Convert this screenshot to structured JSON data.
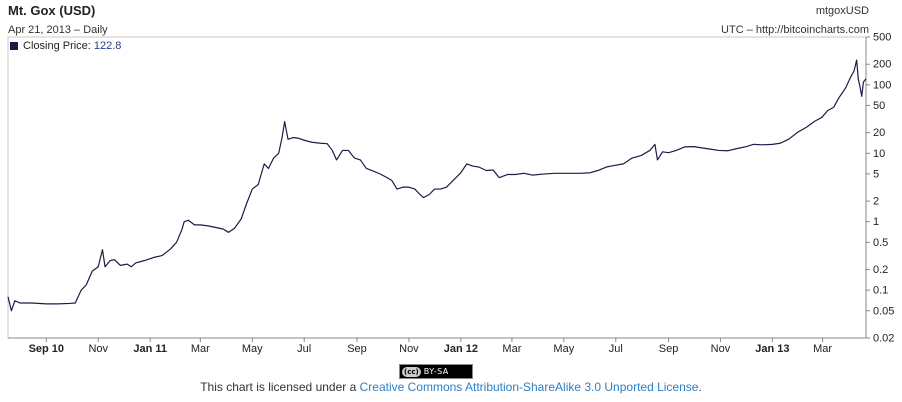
{
  "header": {
    "title": "Mt. Gox (USD)",
    "subtitle": "Apr 21, 2013 – Daily",
    "symbol": "mtgoxUSD",
    "source": "UTC – http://bitcoincharts.com"
  },
  "legend": {
    "label": "Closing Price:",
    "value": "122.8",
    "color": "#1c1c47"
  },
  "license": {
    "badge_cc": "(cc)",
    "badge_text": "BY-SA",
    "text": "This chart is licensed under a ",
    "link": "Creative Commons Attribution-ShareAlike 3.0 Unported License",
    "tail": "."
  },
  "chart_data": {
    "type": "line",
    "yscale": "log",
    "ylim": [
      0.02,
      500
    ],
    "xlim": [
      "2010-07-18",
      "2013-04-21"
    ],
    "grid": false,
    "y_ticks": [
      {
        "value": 500,
        "label": "500"
      },
      {
        "value": 200,
        "label": "200"
      },
      {
        "value": 100,
        "label": "100"
      },
      {
        "value": 50,
        "label": "50"
      },
      {
        "value": 20,
        "label": "20"
      },
      {
        "value": 10,
        "label": "10"
      },
      {
        "value": 5,
        "label": "5"
      },
      {
        "value": 2,
        "label": "2"
      },
      {
        "value": 1,
        "label": "1"
      },
      {
        "value": 0.5,
        "label": "0.5"
      },
      {
        "value": 0.2,
        "label": "0.2"
      },
      {
        "value": 0.1,
        "label": "0.1"
      },
      {
        "value": 0.05,
        "label": "0.05"
      },
      {
        "value": 0.02,
        "label": "0.02"
      }
    ],
    "x_ticks": [
      {
        "date": "2010-09-01",
        "label": "Sep 10",
        "bold": true
      },
      {
        "date": "2010-11-01",
        "label": "Nov",
        "bold": false
      },
      {
        "date": "2011-01-01",
        "label": "Jan 11",
        "bold": true
      },
      {
        "date": "2011-03-01",
        "label": "Mar",
        "bold": false
      },
      {
        "date": "2011-05-01",
        "label": "May",
        "bold": false
      },
      {
        "date": "2011-07-01",
        "label": "Jul",
        "bold": false
      },
      {
        "date": "2011-09-01",
        "label": "Sep",
        "bold": false
      },
      {
        "date": "2011-11-01",
        "label": "Nov",
        "bold": false
      },
      {
        "date": "2012-01-01",
        "label": "Jan 12",
        "bold": true
      },
      {
        "date": "2012-03-01",
        "label": "Mar",
        "bold": false
      },
      {
        "date": "2012-05-01",
        "label": "May",
        "bold": false
      },
      {
        "date": "2012-07-01",
        "label": "Jul",
        "bold": false
      },
      {
        "date": "2012-09-01",
        "label": "Sep",
        "bold": false
      },
      {
        "date": "2012-11-01",
        "label": "Nov",
        "bold": false
      },
      {
        "date": "2013-01-01",
        "label": "Jan 13",
        "bold": true
      },
      {
        "date": "2013-03-01",
        "label": "Mar",
        "bold": false
      }
    ],
    "series": [
      {
        "name": "Closing Price",
        "color": "#1c1c47",
        "points": [
          [
            "2010-07-18",
            0.08
          ],
          [
            "2010-07-22",
            0.05
          ],
          [
            "2010-07-26",
            0.07
          ],
          [
            "2010-08-01",
            0.065
          ],
          [
            "2010-08-15",
            0.065
          ],
          [
            "2010-09-01",
            0.063
          ],
          [
            "2010-09-15",
            0.063
          ],
          [
            "2010-09-28",
            0.064
          ],
          [
            "2010-10-05",
            0.065
          ],
          [
            "2010-10-12",
            0.1
          ],
          [
            "2010-10-18",
            0.12
          ],
          [
            "2010-10-25",
            0.19
          ],
          [
            "2010-11-01",
            0.22
          ],
          [
            "2010-11-06",
            0.39
          ],
          [
            "2010-11-09",
            0.22
          ],
          [
            "2010-11-15",
            0.27
          ],
          [
            "2010-11-20",
            0.28
          ],
          [
            "2010-11-27",
            0.23
          ],
          [
            "2010-12-05",
            0.24
          ],
          [
            "2010-12-10",
            0.22
          ],
          [
            "2010-12-15",
            0.25
          ],
          [
            "2010-12-25",
            0.27
          ],
          [
            "2011-01-05",
            0.3
          ],
          [
            "2011-01-15",
            0.32
          ],
          [
            "2011-01-25",
            0.4
          ],
          [
            "2011-02-01",
            0.5
          ],
          [
            "2011-02-07",
            0.75
          ],
          [
            "2011-02-10",
            1.0
          ],
          [
            "2011-02-15",
            1.05
          ],
          [
            "2011-02-22",
            0.9
          ],
          [
            "2011-03-01",
            0.9
          ],
          [
            "2011-03-10",
            0.87
          ],
          [
            "2011-03-20",
            0.82
          ],
          [
            "2011-03-28",
            0.78
          ],
          [
            "2011-04-03",
            0.7
          ],
          [
            "2011-04-10",
            0.8
          ],
          [
            "2011-04-18",
            1.1
          ],
          [
            "2011-04-24",
            1.8
          ],
          [
            "2011-05-01",
            3.0
          ],
          [
            "2011-05-08",
            3.5
          ],
          [
            "2011-05-15",
            7.0
          ],
          [
            "2011-05-20",
            6.0
          ],
          [
            "2011-05-26",
            8.5
          ],
          [
            "2011-06-01",
            10.0
          ],
          [
            "2011-06-05",
            17.0
          ],
          [
            "2011-06-08",
            29.0
          ],
          [
            "2011-06-12",
            16.0
          ],
          [
            "2011-06-18",
            17.0
          ],
          [
            "2011-06-25",
            16.5
          ],
          [
            "2011-07-01",
            15.5
          ],
          [
            "2011-07-10",
            14.5
          ],
          [
            "2011-07-20",
            14.0
          ],
          [
            "2011-07-28",
            13.8
          ],
          [
            "2011-08-03",
            11.0
          ],
          [
            "2011-08-08",
            8.0
          ],
          [
            "2011-08-15",
            11.0
          ],
          [
            "2011-08-22",
            11.0
          ],
          [
            "2011-08-29",
            8.5
          ],
          [
            "2011-09-05",
            8.0
          ],
          [
            "2011-09-12",
            6.0
          ],
          [
            "2011-09-20",
            5.5
          ],
          [
            "2011-09-28",
            5.0
          ],
          [
            "2011-10-05",
            4.5
          ],
          [
            "2011-10-12",
            4.0
          ],
          [
            "2011-10-18",
            3.0
          ],
          [
            "2011-10-25",
            3.2
          ],
          [
            "2011-11-01",
            3.2
          ],
          [
            "2011-11-08",
            3.0
          ],
          [
            "2011-11-14",
            2.5
          ],
          [
            "2011-11-18",
            2.25
          ],
          [
            "2011-11-25",
            2.5
          ],
          [
            "2011-12-01",
            3.0
          ],
          [
            "2011-12-08",
            3.0
          ],
          [
            "2011-12-15",
            3.2
          ],
          [
            "2011-12-22",
            3.9
          ],
          [
            "2012-01-01",
            5.2
          ],
          [
            "2012-01-08",
            7.0
          ],
          [
            "2012-01-15",
            6.5
          ],
          [
            "2012-01-22",
            6.3
          ],
          [
            "2012-01-31",
            5.6
          ],
          [
            "2012-02-08",
            5.7
          ],
          [
            "2012-02-15",
            4.4
          ],
          [
            "2012-02-25",
            4.9
          ],
          [
            "2012-03-05",
            4.9
          ],
          [
            "2012-03-15",
            5.1
          ],
          [
            "2012-03-25",
            4.8
          ],
          [
            "2012-04-05",
            4.95
          ],
          [
            "2012-04-20",
            5.1
          ],
          [
            "2012-05-05",
            5.1
          ],
          [
            "2012-05-20",
            5.1
          ],
          [
            "2012-06-01",
            5.2
          ],
          [
            "2012-06-10",
            5.6
          ],
          [
            "2012-06-20",
            6.3
          ],
          [
            "2012-07-01",
            6.7
          ],
          [
            "2012-07-10",
            7.0
          ],
          [
            "2012-07-20",
            8.5
          ],
          [
            "2012-07-31",
            9.3
          ],
          [
            "2012-08-10",
            11.0
          ],
          [
            "2012-08-16",
            13.5
          ],
          [
            "2012-08-19",
            8.0
          ],
          [
            "2012-08-25",
            10.5
          ],
          [
            "2012-09-01",
            10.2
          ],
          [
            "2012-09-10",
            11.0
          ],
          [
            "2012-09-20",
            12.4
          ],
          [
            "2012-10-01",
            12.5
          ],
          [
            "2012-10-10",
            12.0
          ],
          [
            "2012-10-20",
            11.5
          ],
          [
            "2012-10-30",
            11.0
          ],
          [
            "2012-11-10",
            10.9
          ],
          [
            "2012-11-20",
            11.7
          ],
          [
            "2012-12-01",
            12.5
          ],
          [
            "2012-12-10",
            13.5
          ],
          [
            "2012-12-20",
            13.3
          ],
          [
            "2013-01-01",
            13.5
          ],
          [
            "2013-01-10",
            14.0
          ],
          [
            "2013-01-20",
            16.0
          ],
          [
            "2013-01-31",
            20.4
          ],
          [
            "2013-02-10",
            24.0
          ],
          [
            "2013-02-20",
            29.5
          ],
          [
            "2013-02-28",
            33.4
          ],
          [
            "2013-03-07",
            42.0
          ],
          [
            "2013-03-14",
            47.0
          ],
          [
            "2013-03-20",
            64.0
          ],
          [
            "2013-03-28",
            90.0
          ],
          [
            "2013-04-03",
            130.0
          ],
          [
            "2013-04-07",
            160.0
          ],
          [
            "2013-04-10",
            230.0
          ],
          [
            "2013-04-12",
            120.0
          ],
          [
            "2013-04-14",
            93.0
          ],
          [
            "2013-04-16",
            68.0
          ],
          [
            "2013-04-18",
            110.0
          ],
          [
            "2013-04-21",
            122.8
          ]
        ]
      }
    ]
  }
}
